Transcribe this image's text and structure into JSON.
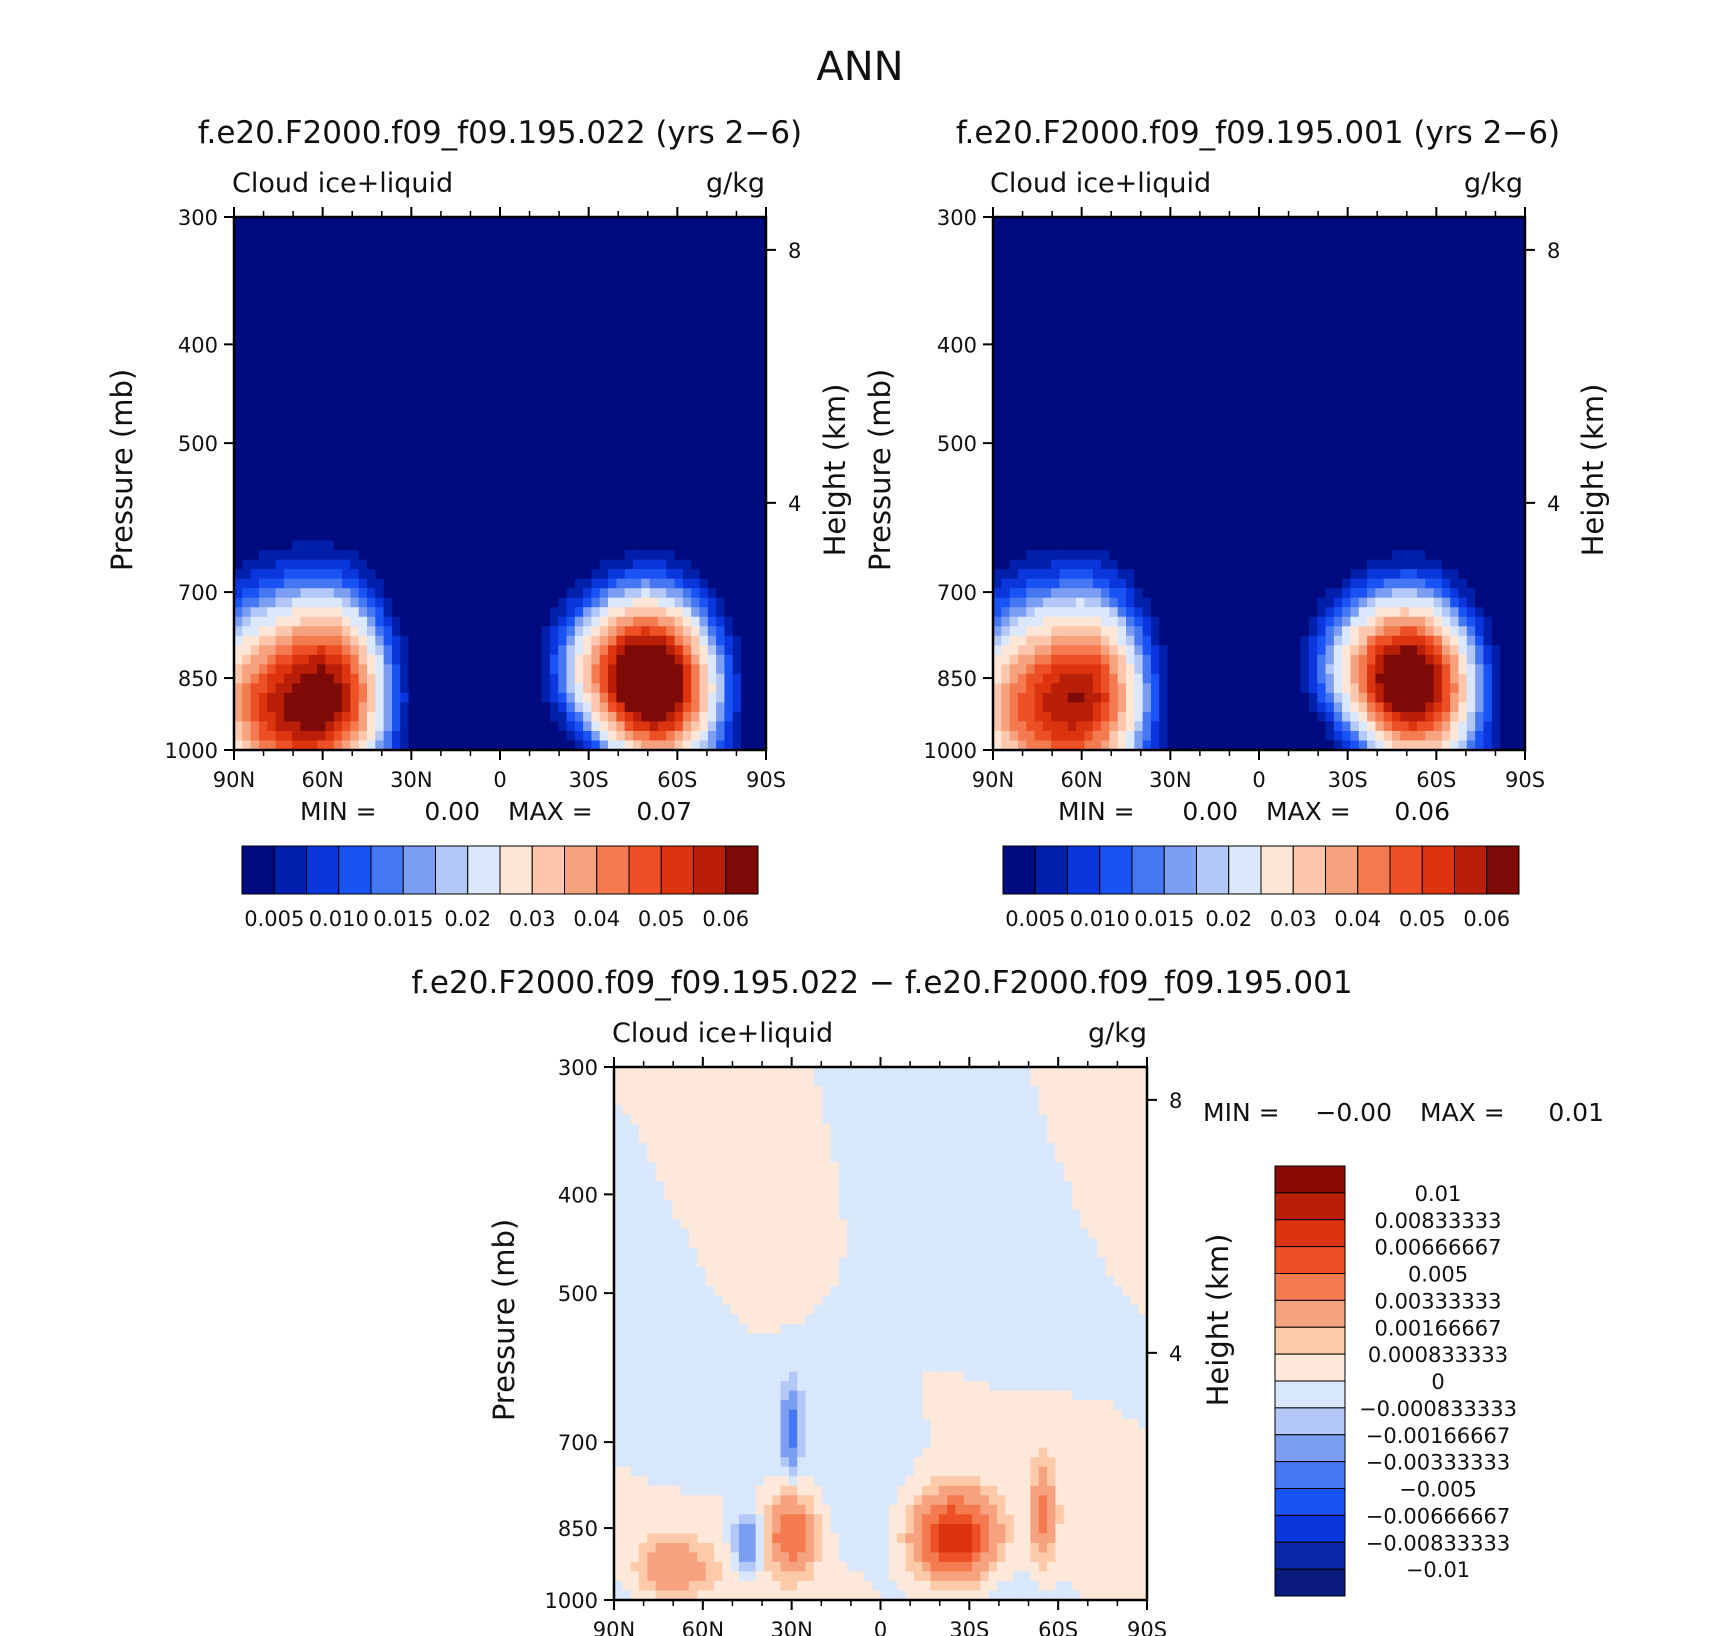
{
  "page_title": "ANN",
  "colors": {
    "positive_scale": [
      "#000b7f",
      "#0020ab",
      "#0a37dd",
      "#1a53f5",
      "#4677f2",
      "#7c9ef2",
      "#b3c8f6",
      "#dbe8fb",
      "#fde6d6",
      "#fcc7ad",
      "#f6a27f",
      "#f47a50",
      "#ee5026",
      "#dd3410",
      "#b81e08",
      "#7d0a07"
    ],
    "diverging_scale": [
      "#0b1a7d",
      "#0928a8",
      "#0a37dd",
      "#1a53f5",
      "#4677f2",
      "#7c9ef2",
      "#b3c8f6",
      "#d8e7fb",
      "#fde8da",
      "#fcc9a9",
      "#f6a27f",
      "#f47a50",
      "#ee5026",
      "#dd3410",
      "#b81e08",
      "#8a0a05"
    ]
  },
  "chart_data": [
    {
      "type": "heatmap",
      "title": "f.e20.F2000.f09_f09.195.022 (yrs 2−6)",
      "left_label": "Cloud ice+liquid",
      "right_label": "g/kg",
      "xlabel": "",
      "ylabel": "Pressure (mb)",
      "y2label": "Height (km)",
      "x_ticks": [
        "90N",
        "60N",
        "30N",
        "0",
        "30S",
        "60S",
        "90S"
      ],
      "y_ticks": [
        "300",
        "400",
        "500",
        "700",
        "850",
        "1000"
      ],
      "y2_ticks": [
        "8",
        "4"
      ],
      "stats": {
        "min_label": "MIN =",
        "min_value": "0.00",
        "max_label": "MAX =",
        "max_value": "0.07"
      },
      "colorbar_labels": [
        "0.005",
        "0.010",
        "0.015",
        "0.02",
        "0.03",
        "0.04",
        "0.05",
        "0.06"
      ],
      "features": [
        {
          "lat": 77,
          "p": 900,
          "peak": 0.045,
          "wlat": 22,
          "wp": 170
        },
        {
          "lat": 55,
          "p": 870,
          "peak": 0.04,
          "wlat": 16,
          "wp": 150
        },
        {
          "lat": -52,
          "p": 860,
          "peak": 0.07,
          "wlat": 18,
          "wp": 130
        },
        {
          "lat": -35,
          "p": 820,
          "peak": 0.02,
          "wlat": 18,
          "wp": 110
        }
      ]
    },
    {
      "type": "heatmap",
      "title": "f.e20.F2000.f09_f09.195.001 (yrs 2−6)",
      "left_label": "Cloud ice+liquid",
      "right_label": "g/kg",
      "xlabel": "",
      "ylabel": "Pressure (mb)",
      "y2label": "Height (km)",
      "x_ticks": [
        "90N",
        "60N",
        "30N",
        "0",
        "30S",
        "60S",
        "90S"
      ],
      "y_ticks": [
        "300",
        "400",
        "500",
        "700",
        "850",
        "1000"
      ],
      "y2_ticks": [
        "8",
        "4"
      ],
      "stats": {
        "min_label": "MIN =",
        "min_value": "0.00",
        "max_label": "MAX =",
        "max_value": "0.06"
      },
      "colorbar_labels": [
        "0.005",
        "0.010",
        "0.015",
        "0.02",
        "0.03",
        "0.04",
        "0.05",
        "0.06"
      ],
      "features": [
        {
          "lat": 77,
          "p": 900,
          "peak": 0.04,
          "wlat": 22,
          "wp": 170
        },
        {
          "lat": 55,
          "p": 870,
          "peak": 0.035,
          "wlat": 16,
          "wp": 150
        },
        {
          "lat": -52,
          "p": 860,
          "peak": 0.063,
          "wlat": 18,
          "wp": 130
        },
        {
          "lat": -35,
          "p": 820,
          "peak": 0.018,
          "wlat": 18,
          "wp": 110
        }
      ]
    },
    {
      "type": "heatmap",
      "title": "f.e20.F2000.f09_f09.195.022 − f.e20.F2000.f09_f09.195.001",
      "left_label": "Cloud ice+liquid",
      "right_label": "g/kg",
      "xlabel": "",
      "ylabel": "Pressure (mb)",
      "y2label": "Height (km)",
      "x_ticks": [
        "90N",
        "60N",
        "30N",
        "0",
        "30S",
        "60S",
        "90S"
      ],
      "y_ticks": [
        "300",
        "400",
        "500",
        "700",
        "850",
        "1000"
      ],
      "y2_ticks": [
        "8",
        "4"
      ],
      "stats": {
        "min_label": "MIN =",
        "min_value": "−0.00",
        "max_label": "MAX =",
        "max_value": "0.01"
      },
      "colorbar_labels": [
        "0.01",
        "0.00833333",
        "0.00666667",
        "0.005",
        "0.00333333",
        "0.00166667",
        "0.000833333",
        "0",
        "−0.000833333",
        "−0.00166667",
        "−0.00333333",
        "−0.005",
        "−0.00666667",
        "−0.00833333",
        "−0.01"
      ],
      "features": [
        {
          "lat": -25,
          "p": 870,
          "peak": 0.0085,
          "wlat": 13,
          "wp": 80
        },
        {
          "lat": 30,
          "p": 860,
          "peak": 0.005,
          "wlat": 8,
          "wp": 70
        },
        {
          "lat": -55,
          "p": 830,
          "peak": 0.0035,
          "wlat": 4,
          "wp": 90
        },
        {
          "lat": 70,
          "p": 930,
          "peak": 0.003,
          "wlat": 12,
          "wp": 60
        },
        {
          "lat": 30,
          "p": 680,
          "peak": -0.004,
          "wlat": 3,
          "wp": 60
        },
        {
          "lat": 45,
          "p": 880,
          "peak": -0.003,
          "wlat": 5,
          "wp": 60
        }
      ]
    }
  ]
}
